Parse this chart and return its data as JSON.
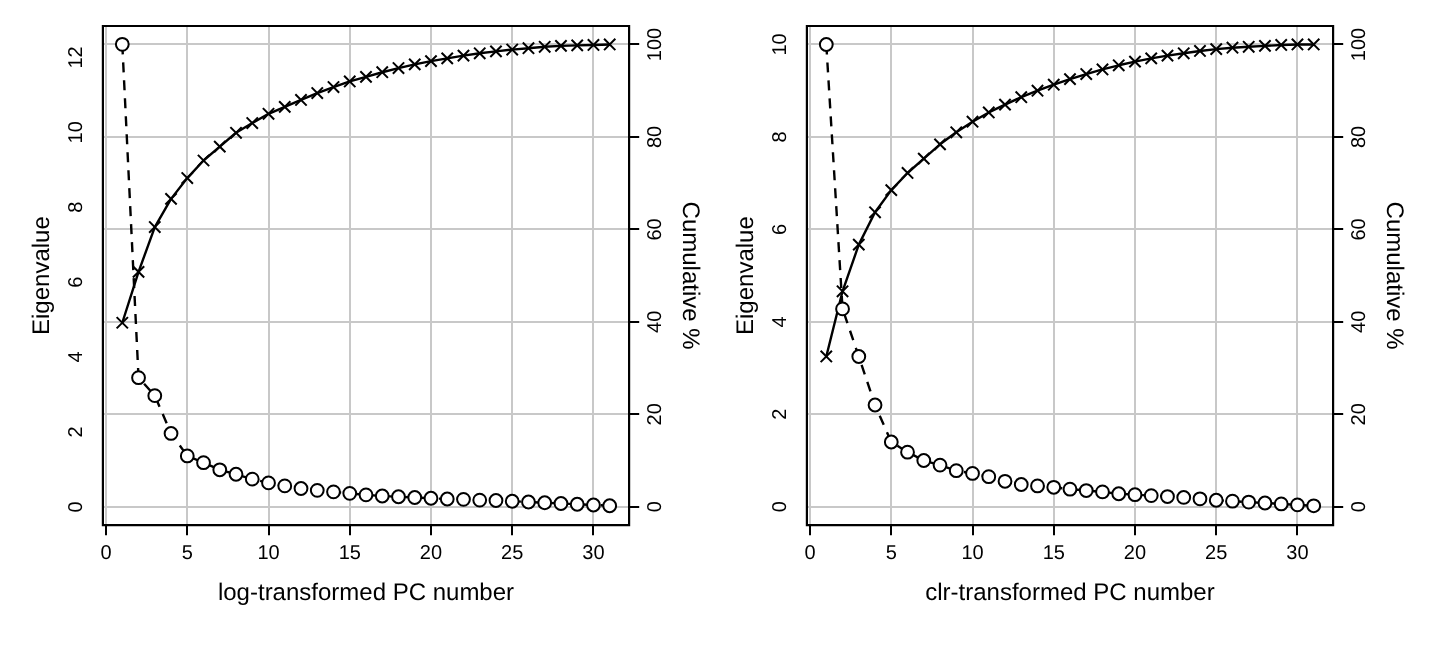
{
  "chart_data": [
    {
      "type": "line",
      "xlabel": "log-transformed PC number",
      "ylabel": "Eigenvalue",
      "y2label": "Cumulative %",
      "x": [
        1,
        2,
        3,
        4,
        5,
        6,
        7,
        8,
        9,
        10,
        11,
        12,
        13,
        14,
        15,
        16,
        17,
        18,
        19,
        20,
        21,
        22,
        23,
        24,
        25,
        26,
        27,
        28,
        29,
        30,
        31
      ],
      "series": [
        {
          "color": "#000000",
          "marker": "circle",
          "line_style": "dashed",
          "values": [
            12.35,
            3.45,
            2.97,
            1.96,
            1.36,
            1.18,
            0.99,
            0.87,
            0.74,
            0.64,
            0.56,
            0.49,
            0.44,
            0.4,
            0.36,
            0.32,
            0.29,
            0.27,
            0.25,
            0.23,
            0.21,
            0.2,
            0.18,
            0.17,
            0.15,
            0.13,
            0.11,
            0.09,
            0.07,
            0.05,
            0.03
          ]
        },
        {
          "color": "#000000",
          "marker": "cross",
          "line_style": "solid",
          "axis": "y2",
          "values": [
            39.8,
            50.8,
            60.5,
            66.6,
            71.1,
            74.9,
            77.9,
            80.9,
            83,
            85,
            86.5,
            88,
            89.5,
            90.8,
            92,
            93,
            94,
            94.9,
            95.7,
            96.4,
            97,
            97.6,
            98.1,
            98.5,
            98.9,
            99.2,
            99.5,
            99.7,
            99.8,
            99.9,
            100
          ]
        }
      ],
      "xlim": [
        -0.2,
        32.2
      ],
      "xticks": [
        0,
        5,
        10,
        15,
        20,
        25,
        30
      ],
      "ylim": [
        -0.49,
        12.84
      ],
      "yticks": [
        0,
        2,
        4,
        6,
        8,
        10,
        12
      ],
      "y2lim": [
        -4,
        104
      ],
      "y2ticks": [
        0,
        20,
        40,
        60,
        80,
        100
      ],
      "grid": true,
      "legend": false
    },
    {
      "type": "line",
      "xlabel": "clr-transformed PC number",
      "ylabel": "Eigenvalue",
      "y2label": "Cumulative %",
      "x": [
        1,
        2,
        3,
        4,
        5,
        6,
        7,
        8,
        9,
        10,
        11,
        12,
        13,
        14,
        15,
        16,
        17,
        18,
        19,
        20,
        21,
        22,
        23,
        24,
        25,
        26,
        27,
        28,
        29,
        30,
        31
      ],
      "series": [
        {
          "color": "#000000",
          "marker": "circle",
          "line_style": "dashed",
          "values": [
            10,
            4.28,
            3.25,
            2.2,
            1.4,
            1.18,
            1.0,
            0.9,
            0.78,
            0.72,
            0.65,
            0.55,
            0.48,
            0.45,
            0.42,
            0.38,
            0.35,
            0.32,
            0.28,
            0.26,
            0.24,
            0.22,
            0.2,
            0.17,
            0.14,
            0.12,
            0.1,
            0.08,
            0.06,
            0.04,
            0.02
          ]
        },
        {
          "color": "#000000",
          "marker": "cross",
          "line_style": "solid",
          "axis": "y2",
          "values": [
            32.5,
            46.6,
            56.7,
            63.7,
            68.5,
            72.2,
            75.3,
            78.4,
            81,
            83.3,
            85.3,
            87,
            88.6,
            90,
            91.3,
            92.5,
            93.6,
            94.6,
            95.5,
            96.3,
            97,
            97.6,
            98.1,
            98.6,
            99,
            99.3,
            99.5,
            99.7,
            99.9,
            100,
            100
          ]
        }
      ],
      "xlim": [
        -0.2,
        32.2
      ],
      "xticks": [
        0,
        5,
        10,
        15,
        20,
        25,
        30
      ],
      "ylim": [
        -0.4,
        10.4
      ],
      "yticks": [
        0,
        2,
        4,
        6,
        8,
        10
      ],
      "y2lim": [
        -4,
        104
      ],
      "y2ticks": [
        0,
        20,
        40,
        60,
        80,
        100
      ],
      "grid": true,
      "legend": false
    }
  ]
}
